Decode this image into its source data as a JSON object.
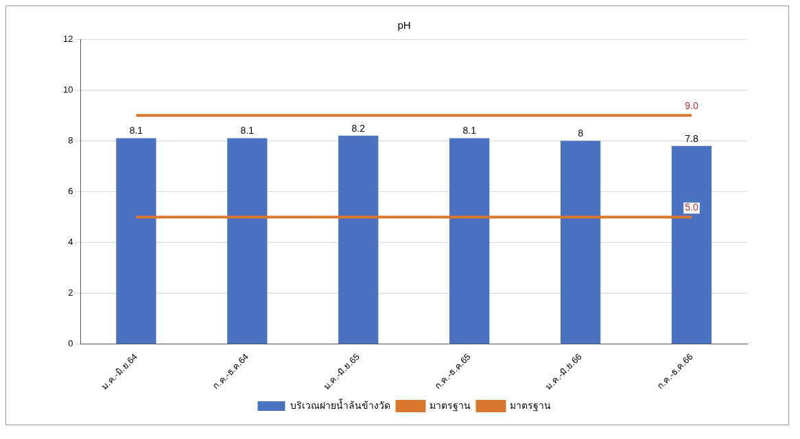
{
  "chart_data": {
    "type": "bar",
    "title": "pH",
    "categories": [
      "ม.ค.-มิ.ย.64",
      "ก.ค.-ธ.ค.64",
      "ม.ค.-มิ.ย.65",
      "ก.ค.-ธ.ค.65",
      "ม.ค.-มิ.ย.66",
      "ก.ค.-ธ.ค.66"
    ],
    "series": [
      {
        "name": "บริเวณฝายน้ำล้นข้างวัด",
        "color": "#4a72c0",
        "values": [
          8.1,
          8.1,
          8.2,
          8.1,
          8,
          7.8
        ],
        "value_labels": [
          "8.1",
          "8.1",
          "8.2",
          "8.1",
          "8",
          "7.8"
        ]
      },
      {
        "name": "มาตรฐาน",
        "type": "line",
        "color": "#d9782d",
        "values": [
          9,
          9,
          9,
          9,
          9,
          9
        ],
        "value_labels": [
          null,
          null,
          null,
          null,
          null,
          "9.0"
        ]
      },
      {
        "name": "มาตรฐาน",
        "type": "line",
        "color": "#d9782d",
        "values": [
          5,
          5,
          5,
          5,
          5,
          5
        ],
        "value_labels": [
          null,
          null,
          null,
          null,
          null,
          "5.0"
        ]
      }
    ],
    "ylim": [
      0,
      12
    ],
    "yticks": [
      0,
      2,
      4,
      6,
      8,
      10,
      12
    ],
    "grid": "y",
    "legend": "bottom"
  }
}
